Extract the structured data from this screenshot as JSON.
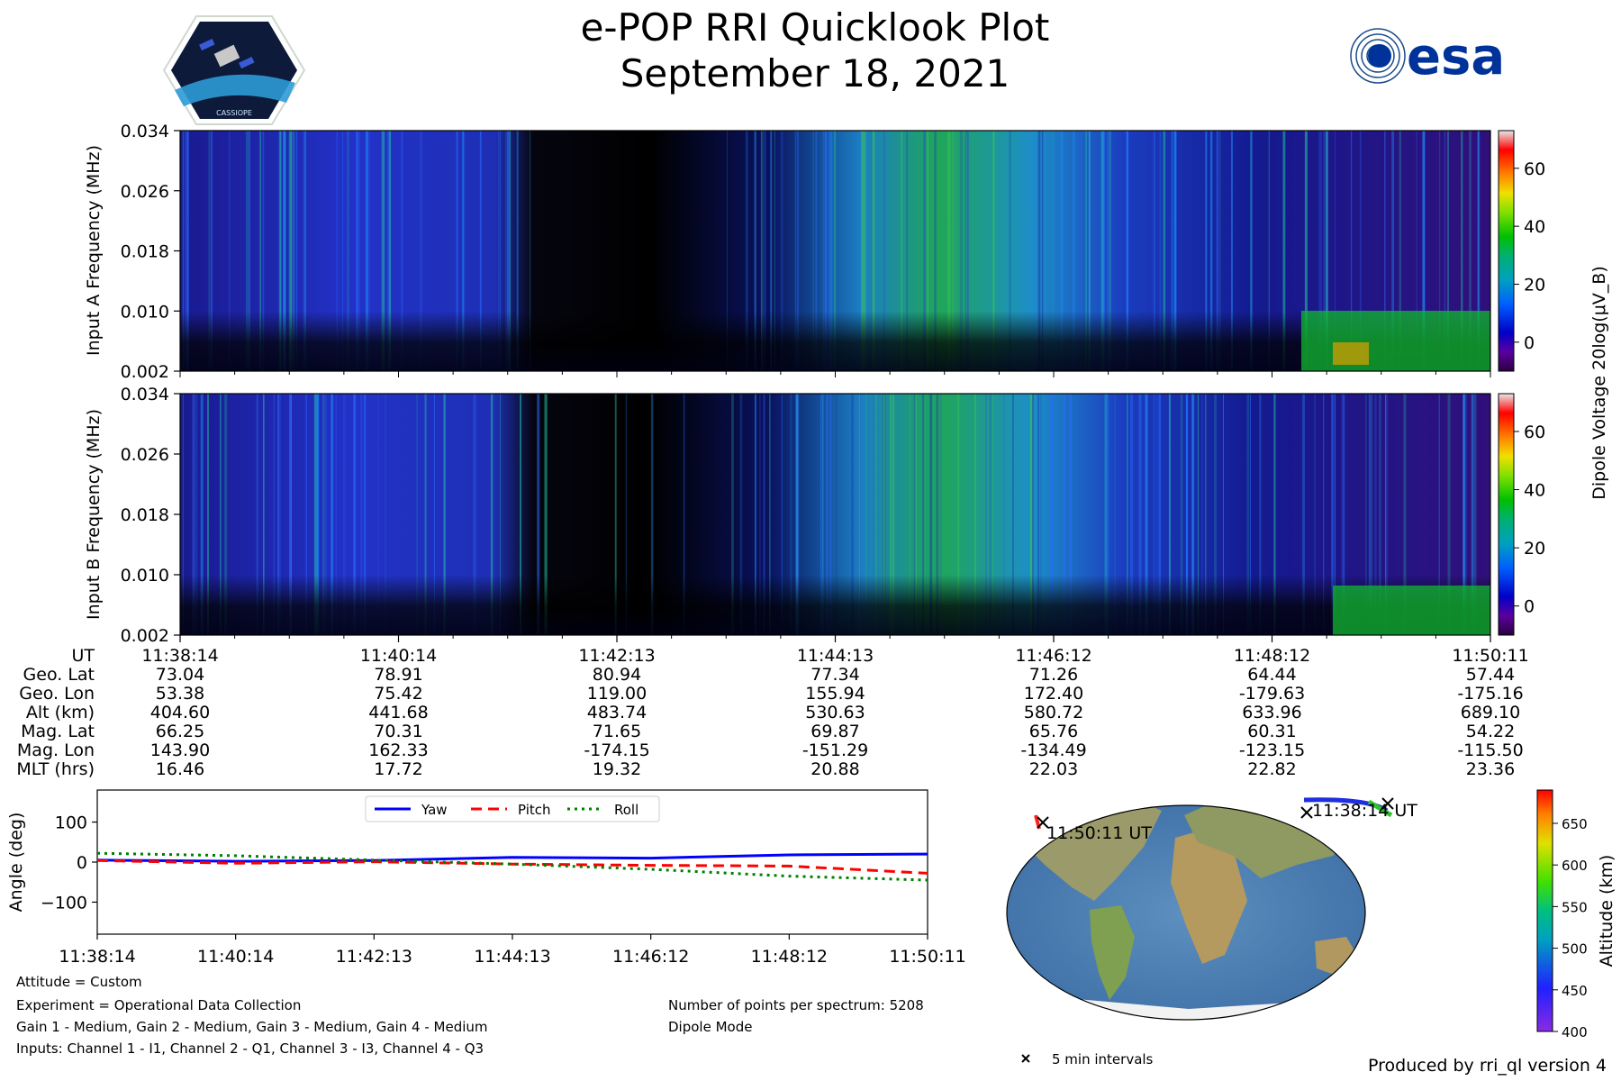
{
  "header": {
    "title": "e-POP RRI Quicklook Plot",
    "date": "September 18, 2021",
    "left_logo_icon": "cassiope-mission-logo",
    "right_logo_icon": "esa-logo",
    "right_logo_text": "esa",
    "left_logo_text": "CASSIOPE"
  },
  "chart_data": [
    {
      "id": "input-a-spectrogram",
      "type": "heatmap",
      "ylabel": "Input A Frequency (MHz)",
      "yticks": [
        "0.002",
        "0.010",
        "0.018",
        "0.026",
        "0.034"
      ],
      "ylim": [
        0.002,
        0.034
      ]
    },
    {
      "id": "input-b-spectrogram",
      "type": "heatmap",
      "ylabel": "Input B Frequency (MHz)",
      "yticks": [
        "0.002",
        "0.010",
        "0.018",
        "0.026",
        "0.034"
      ],
      "ylim": [
        0.002,
        0.034
      ]
    },
    {
      "id": "dipole-colorbar",
      "type": "heatmap",
      "label": "Dipole Voltage 20log(μV_B)",
      "ticks": [
        "0",
        "20",
        "40",
        "60"
      ],
      "range": [
        -10,
        73
      ]
    },
    {
      "id": "attitude-plot",
      "type": "line",
      "ylabel": "Angle (deg)",
      "yticks": [
        "100",
        "0",
        "−100"
      ],
      "ylim": [
        -180,
        180
      ],
      "xticks": [
        "11:38:14",
        "11:40:14",
        "11:42:13",
        "11:44:13",
        "11:46:12",
        "11:48:12",
        "11:50:11"
      ],
      "x": [
        0,
        1,
        2,
        3,
        4,
        5,
        6
      ],
      "series": [
        {
          "name": "Yaw",
          "color": "#0000ff",
          "dash": "solid",
          "values": [
            5,
            2,
            4,
            12,
            10,
            18,
            20
          ]
        },
        {
          "name": "Pitch",
          "color": "#ff0000",
          "dash": "dashed",
          "values": [
            4,
            -3,
            1,
            -5,
            -8,
            -10,
            -28
          ]
        },
        {
          "name": "Roll",
          "color": "#008000",
          "dash": "dotted",
          "values": [
            22,
            16,
            5,
            -5,
            -18,
            -35,
            -45
          ]
        }
      ]
    },
    {
      "id": "orbit-map",
      "type": "scatter",
      "annotations": [
        "11:50:11 UT",
        "11:38:14 UT"
      ],
      "legend": "5 min intervals"
    },
    {
      "id": "altitude-colorbar",
      "type": "heatmap",
      "label": "Altitude (km)",
      "ticks": [
        "400",
        "450",
        "500",
        "550",
        "600",
        "650"
      ],
      "range": [
        400,
        690
      ]
    }
  ],
  "ephemeris": {
    "labels": [
      "UT",
      "Geo. Lat",
      "Geo. Lon",
      "Alt (km)",
      "Mag. Lat",
      "Mag. Lon",
      "MLT (hrs)"
    ],
    "columns": [
      [
        "11:38:14",
        "73.04",
        "53.38",
        "404.60",
        "66.25",
        "143.90",
        "16.46"
      ],
      [
        "11:40:14",
        "78.91",
        "75.42",
        "441.68",
        "70.31",
        "162.33",
        "17.72"
      ],
      [
        "11:42:13",
        "80.94",
        "119.00",
        "483.74",
        "71.65",
        "-174.15",
        "19.32"
      ],
      [
        "11:44:13",
        "77.34",
        "155.94",
        "530.63",
        "69.87",
        "-151.29",
        "20.88"
      ],
      [
        "11:46:12",
        "71.26",
        "172.40",
        "580.72",
        "65.76",
        "-134.49",
        "22.03"
      ],
      [
        "11:48:12",
        "64.44",
        "-179.63",
        "633.96",
        "60.31",
        "-123.15",
        "22.82"
      ],
      [
        "11:50:11",
        "57.44",
        "-175.16",
        "689.10",
        "54.22",
        "-115.50",
        "23.36"
      ]
    ]
  },
  "info": {
    "attitude": "Attitude = Custom",
    "experiment": "Experiment = Operational Data Collection",
    "gains": "Gain 1 - Medium, Gain 2 - Medium, Gain 3 - Medium, Gain 4 - Medium",
    "inputs": "Inputs: Channel 1 - I1, Channel 2 - Q1, Channel 3 - I3, Channel 4 - Q3",
    "points": "Number of points per spectrum: 5208",
    "mode": "Dipole Mode",
    "produced_by": "Produced by rri_ql version 4"
  }
}
